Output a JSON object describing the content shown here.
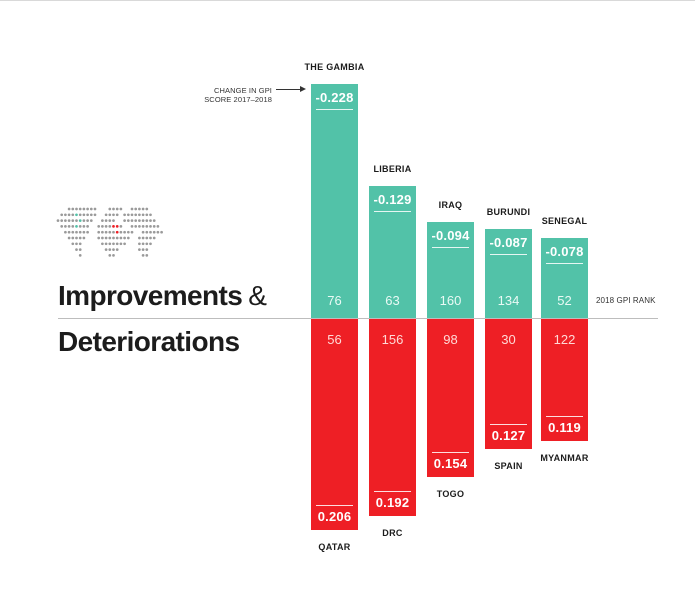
{
  "headings": {
    "improvements": "Improvements",
    "amp": "&",
    "deteriorations": "Deteriorations"
  },
  "callout": {
    "text": "CHANGE IN GPI SCORE 2017–2018"
  },
  "rank_axis_label": "2018 GPI RANK",
  "map_icon": "world-dot-map-icon",
  "colors": {
    "improvement": "#52c2a8",
    "deterioration": "#ee1f25",
    "text": "#1c1c1c"
  },
  "chart_data": {
    "type": "bar",
    "title": "",
    "value_label": "CHANGE IN GPI SCORE 2017–2018",
    "rank_label": "2018 GPI RANK",
    "improvements": [
      {
        "country": "THE GAMBIA",
        "change": -0.228,
        "change_text": "-0.228",
        "rank": 76,
        "rank_text": "76"
      },
      {
        "country": "LIBERIA",
        "change": -0.129,
        "change_text": "-0.129",
        "rank": 63,
        "rank_text": "63"
      },
      {
        "country": "IRAQ",
        "change": -0.094,
        "change_text": "-0.094",
        "rank": 160,
        "rank_text": "160"
      },
      {
        "country": "BURUNDI",
        "change": -0.087,
        "change_text": "-0.087",
        "rank": 134,
        "rank_text": "134"
      },
      {
        "country": "SENEGAL",
        "change": -0.078,
        "change_text": "-0.078",
        "rank": 52,
        "rank_text": "52"
      }
    ],
    "deteriorations": [
      {
        "country": "QATAR",
        "change": 0.206,
        "change_text": "0.206",
        "rank": 56,
        "rank_text": "56"
      },
      {
        "country": "DRC",
        "change": 0.192,
        "change_text": "0.192",
        "rank": 156,
        "rank_text": "156"
      },
      {
        "country": "TOGO",
        "change": 0.154,
        "change_text": "0.154",
        "rank": 98,
        "rank_text": "98"
      },
      {
        "country": "SPAIN",
        "change": 0.127,
        "change_text": "0.127",
        "rank": 30,
        "rank_text": "30"
      },
      {
        "country": "MYANMAR",
        "change": 0.119,
        "change_text": "0.119",
        "rank": 122,
        "rank_text": "122"
      }
    ]
  }
}
